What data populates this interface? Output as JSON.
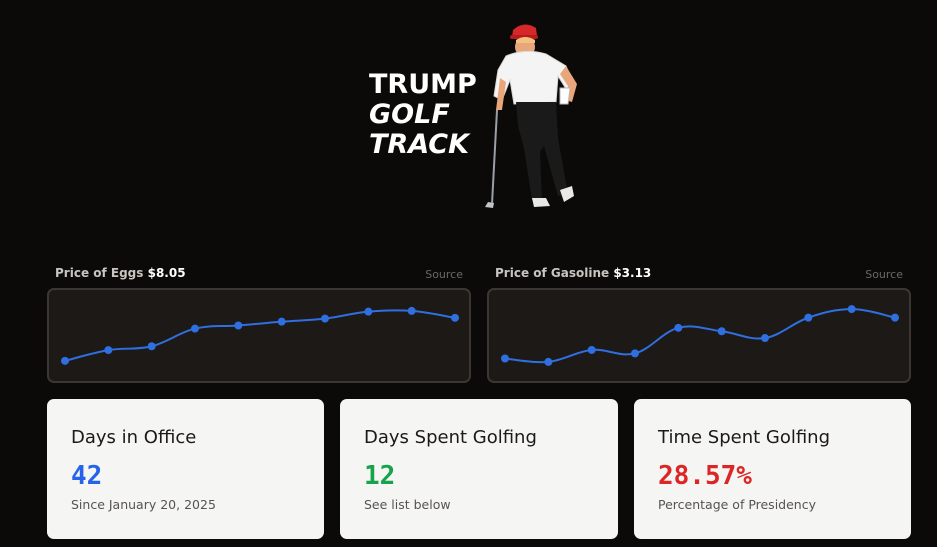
{
  "header": {
    "title_line1": "TRUMP",
    "title_line2": "GOLF",
    "title_line3": "TRACK",
    "figure_icon": "golfer-figure-icon"
  },
  "prices": [
    {
      "label": "Price of Eggs",
      "value": "$8.05",
      "source_label": "Source",
      "line_color": "#2f6fe0",
      "chart_data": {
        "type": "line",
        "x": [
          1,
          2,
          3,
          4,
          5,
          6,
          7,
          8,
          9,
          10
        ],
        "values": [
          4.9,
          5.6,
          5.85,
          7.0,
          7.2,
          7.45,
          7.65,
          8.1,
          8.15,
          7.7
        ],
        "ylim": [
          4.5,
          8.6
        ]
      }
    },
    {
      "label": "Price of Gasoline",
      "value": "$3.13",
      "source_label": "Source",
      "line_color": "#2f6fe0",
      "chart_data": {
        "type": "line",
        "x": [
          1,
          2,
          3,
          4,
          5,
          6,
          7,
          8,
          9,
          10
        ],
        "values": [
          3.02,
          3.0,
          3.07,
          3.05,
          3.2,
          3.18,
          3.14,
          3.26,
          3.31,
          3.26
        ],
        "ylim": [
          2.97,
          3.34
        ]
      }
    }
  ],
  "cards": [
    {
      "title": "Days in Office",
      "value": "42",
      "sub": "Since January 20, 2025",
      "color": "#2563eb"
    },
    {
      "title": "Days Spent Golfing",
      "value": "12",
      "sub": "See list below",
      "color": "#16a34a"
    },
    {
      "title": "Time Spent Golfing",
      "value": "28.57%",
      "sub": "Percentage of Presidency",
      "color": "#dc2626"
    }
  ]
}
